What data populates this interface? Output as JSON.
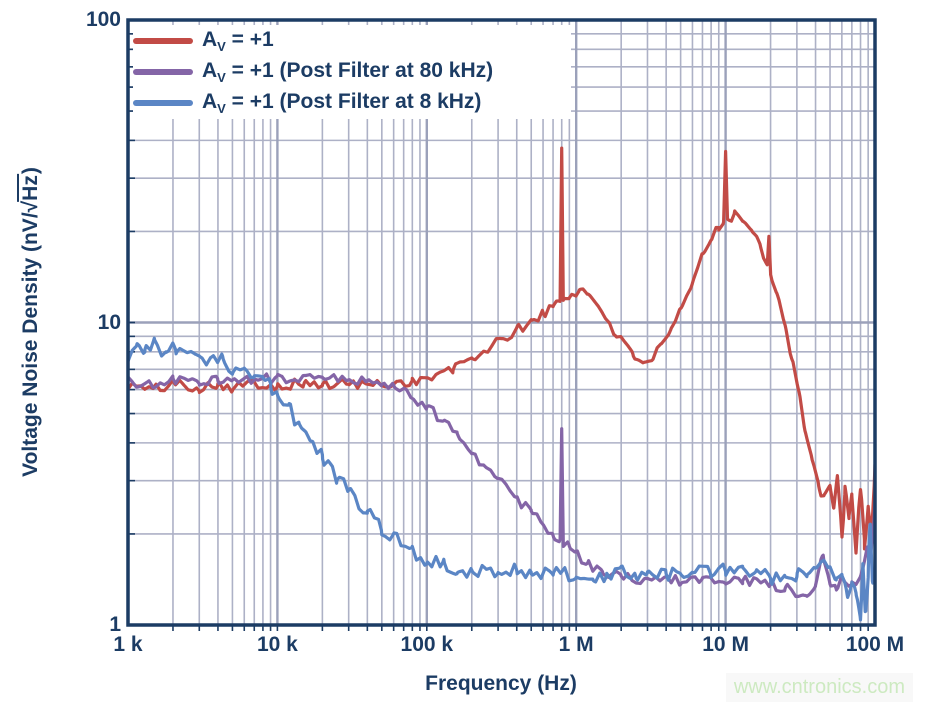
{
  "watermark": {
    "text": "www.cntronics.com",
    "color": "#cdeac1",
    "background": "#f8f8f8"
  },
  "axis": {
    "color": "#1c3c64",
    "grid_minor_color": "#adb1c6",
    "grid_major_color": "#9ba1ba",
    "text_color": "#1c3c64",
    "background": "#ffffff"
  },
  "labels": {
    "xlabel": "Frequency (Hz)",
    "ylabel_parts": {
      "pre": "Voltage Noise Density (nV/",
      "radical": "√",
      "radicand": "Hz",
      "post": ")"
    }
  },
  "legend": {
    "items": [
      {
        "base": "A",
        "sub": "V",
        "rest": " = +1"
      },
      {
        "base": "A",
        "sub": "V",
        "rest": " = +1 (Post Filter at 80 kHz)"
      },
      {
        "base": "A",
        "sub": "V",
        "rest": " = +1 (Post Filter at 8 kHz)"
      }
    ]
  },
  "chart_data": {
    "type": "line",
    "title": "",
    "xlabel": "Frequency (Hz)",
    "ylabel": "Voltage Noise Density (nV/√Hz)",
    "x_scale": "log",
    "y_scale": "log",
    "xlim": [
      1000,
      100000000
    ],
    "ylim": [
      1,
      100
    ],
    "grid": "log major+minor",
    "legend_position": "top-left",
    "x_ticks": [
      {
        "label": "1 k",
        "value": 1000
      },
      {
        "label": "10 k",
        "value": 10000
      },
      {
        "label": "100 k",
        "value": 100000
      },
      {
        "label": "1 M",
        "value": 1000000
      },
      {
        "label": "10 M",
        "value": 10000000
      },
      {
        "label": "100 M",
        "value": 100000000
      }
    ],
    "y_ticks": [
      {
        "label": "100",
        "value": 100
      },
      {
        "label": "10",
        "value": 10
      },
      {
        "label": "1",
        "value": 1
      }
    ],
    "series": [
      {
        "name": "AV = +1",
        "color": "#c24b46",
        "noise": 0.04,
        "noise_end": {
          "start": 45000000,
          "amp": 0.16
        },
        "points": [
          [
            1000,
            6.2
          ],
          [
            1500,
            6.0
          ],
          [
            2000,
            6.3
          ],
          [
            3000,
            6.1
          ],
          [
            4000,
            6.3
          ],
          [
            5000,
            6.1
          ],
          [
            7000,
            6.3
          ],
          [
            10000,
            6.2
          ],
          [
            15000,
            6.3
          ],
          [
            20000,
            6.2
          ],
          [
            30000,
            6.3
          ],
          [
            40000,
            6.2
          ],
          [
            60000,
            6.3
          ],
          [
            80000,
            6.4
          ],
          [
            100000,
            6.5
          ],
          [
            150000,
            7.0
          ],
          [
            200000,
            7.6
          ],
          [
            300000,
            8.6
          ],
          [
            400000,
            9.4
          ],
          [
            500000,
            10.1
          ],
          [
            600000,
            10.7
          ],
          [
            700000,
            11.2
          ],
          [
            780000,
            11.8
          ],
          [
            800000,
            38
          ],
          [
            820000,
            11.9
          ],
          [
            900000,
            12.2
          ],
          [
            1050000,
            12.9
          ],
          [
            1200000,
            12.4
          ],
          [
            1500000,
            10.9
          ],
          [
            1800000,
            9.4
          ],
          [
            2100000,
            8.4
          ],
          [
            2400000,
            7.8
          ],
          [
            2800000,
            7.5
          ],
          [
            3200000,
            7.6
          ],
          [
            3700000,
            8.2
          ],
          [
            4300000,
            9.3
          ],
          [
            5000000,
            10.8
          ],
          [
            6000000,
            13.5
          ],
          [
            7000000,
            16.5
          ],
          [
            8000000,
            19.0
          ],
          [
            9000000,
            21.0
          ],
          [
            9700000,
            22.0
          ],
          [
            10000000,
            37
          ],
          [
            10300000,
            22.0
          ],
          [
            11500000,
            22.8
          ],
          [
            13000000,
            22.0
          ],
          [
            15000000,
            20.5
          ],
          [
            17000000,
            18.0
          ],
          [
            19000000,
            15.8
          ],
          [
            19500000,
            19.5
          ],
          [
            20000000,
            14.8
          ],
          [
            22000000,
            12.5
          ],
          [
            25000000,
            9.8
          ],
          [
            28000000,
            7.5
          ],
          [
            31000000,
            5.8
          ],
          [
            34000000,
            4.4
          ],
          [
            38000000,
            3.4
          ],
          [
            42000000,
            2.9
          ],
          [
            46000000,
            2.6
          ],
          [
            50000000,
            2.8
          ],
          [
            53000000,
            2.3
          ],
          [
            56000000,
            3.1
          ],
          [
            60000000,
            2.0
          ],
          [
            63000000,
            2.9
          ],
          [
            67000000,
            2.1
          ],
          [
            70000000,
            2.6
          ],
          [
            75000000,
            1.9
          ],
          [
            80000000,
            2.7
          ],
          [
            85000000,
            2.1
          ],
          [
            90000000,
            2.5
          ],
          [
            95000000,
            2.2
          ],
          [
            100000000,
            3.3
          ]
        ]
      },
      {
        "name": "AV = +1 (Post Filter at 80 kHz)",
        "color": "#8465a7",
        "noise": 0.04,
        "noise_end": {
          "start": 80000000,
          "amp": 0.15
        },
        "points": [
          [
            1000,
            6.4
          ],
          [
            1500,
            6.2
          ],
          [
            2000,
            6.5
          ],
          [
            3000,
            6.3
          ],
          [
            4000,
            6.5
          ],
          [
            5000,
            6.4
          ],
          [
            7000,
            6.5
          ],
          [
            10000,
            6.5
          ],
          [
            15000,
            6.6
          ],
          [
            20000,
            6.5
          ],
          [
            30000,
            6.5
          ],
          [
            40000,
            6.4
          ],
          [
            50000,
            6.3
          ],
          [
            60000,
            6.15
          ],
          [
            70000,
            5.95
          ],
          [
            80000,
            5.7
          ],
          [
            100000,
            5.3
          ],
          [
            130000,
            4.7
          ],
          [
            160000,
            4.2
          ],
          [
            200000,
            3.7
          ],
          [
            250000,
            3.3
          ],
          [
            300000,
            3.0
          ],
          [
            400000,
            2.6
          ],
          [
            500000,
            2.35
          ],
          [
            600000,
            2.15
          ],
          [
            700000,
            2.0
          ],
          [
            780000,
            1.92
          ],
          [
            800000,
            4.3
          ],
          [
            820000,
            1.88
          ],
          [
            900000,
            1.8
          ],
          [
            1000000,
            1.72
          ],
          [
            1200000,
            1.6
          ],
          [
            1500000,
            1.5
          ],
          [
            2000000,
            1.43
          ],
          [
            3000000,
            1.4
          ],
          [
            4000000,
            1.42
          ],
          [
            5000000,
            1.4
          ],
          [
            7000000,
            1.42
          ],
          [
            10000000,
            1.4
          ],
          [
            13000000,
            1.42
          ],
          [
            16000000,
            1.38
          ],
          [
            20000000,
            1.36
          ],
          [
            25000000,
            1.32
          ],
          [
            30000000,
            1.28
          ],
          [
            35000000,
            1.24
          ],
          [
            40000000,
            1.35
          ],
          [
            45000000,
            1.72
          ],
          [
            50000000,
            1.4
          ],
          [
            55000000,
            1.3
          ],
          [
            60000000,
            1.45
          ],
          [
            70000000,
            1.35
          ],
          [
            80000000,
            1.45
          ],
          [
            90000000,
            1.7
          ],
          [
            95000000,
            2.1
          ],
          [
            100000000,
            2.4
          ]
        ]
      },
      {
        "name": "AV = +1 (Post Filter at 8 kHz)",
        "color": "#5b86c5",
        "noise": 0.055,
        "noise_end": {
          "start": 65000000,
          "amp": 0.15
        },
        "points": [
          [
            1000,
            7.3
          ],
          [
            1150,
            8.9
          ],
          [
            1300,
            8.2
          ],
          [
            1500,
            8.5
          ],
          [
            1800,
            7.8
          ],
          [
            2100,
            8.3
          ],
          [
            2500,
            7.7
          ],
          [
            3000,
            7.9
          ],
          [
            3600,
            7.4
          ],
          [
            4300,
            7.6
          ],
          [
            5000,
            7.1
          ],
          [
            6000,
            7.3
          ],
          [
            7000,
            6.7
          ],
          [
            8000,
            6.4
          ],
          [
            9000,
            6.2
          ],
          [
            10000,
            5.8
          ],
          [
            12000,
            5.2
          ],
          [
            14000,
            4.5
          ],
          [
            17000,
            4.0
          ],
          [
            20000,
            3.6
          ],
          [
            25000,
            3.1
          ],
          [
            30000,
            2.8
          ],
          [
            40000,
            2.35
          ],
          [
            50000,
            2.1
          ],
          [
            60000,
            1.95
          ],
          [
            80000,
            1.75
          ],
          [
            100000,
            1.65
          ],
          [
            130000,
            1.58
          ],
          [
            160000,
            1.52
          ],
          [
            200000,
            1.5
          ],
          [
            300000,
            1.48
          ],
          [
            400000,
            1.52
          ],
          [
            500000,
            1.46
          ],
          [
            700000,
            1.52
          ],
          [
            1000000,
            1.46
          ],
          [
            1300000,
            1.42
          ],
          [
            1600000,
            1.47
          ],
          [
            2000000,
            1.5
          ],
          [
            2500000,
            1.44
          ],
          [
            3000000,
            1.52
          ],
          [
            4000000,
            1.46
          ],
          [
            5000000,
            1.52
          ],
          [
            6000000,
            1.47
          ],
          [
            8000000,
            1.52
          ],
          [
            10000000,
            1.52
          ],
          [
            13000000,
            1.5
          ],
          [
            16000000,
            1.47
          ],
          [
            20000000,
            1.44
          ],
          [
            25000000,
            1.4
          ],
          [
            30000000,
            1.46
          ],
          [
            35000000,
            1.52
          ],
          [
            40000000,
            1.5
          ],
          [
            45000000,
            1.55
          ],
          [
            50000000,
            1.6
          ],
          [
            55000000,
            1.45
          ],
          [
            60000000,
            1.4
          ],
          [
            65000000,
            1.3
          ],
          [
            70000000,
            1.35
          ],
          [
            75000000,
            1.2
          ],
          [
            80000000,
            1.1
          ],
          [
            83000000,
            1.75
          ],
          [
            86000000,
            1.25
          ],
          [
            90000000,
            1.35
          ],
          [
            93000000,
            2.0
          ],
          [
            96000000,
            1.4
          ],
          [
            100000000,
            1.55
          ]
        ]
      }
    ]
  }
}
